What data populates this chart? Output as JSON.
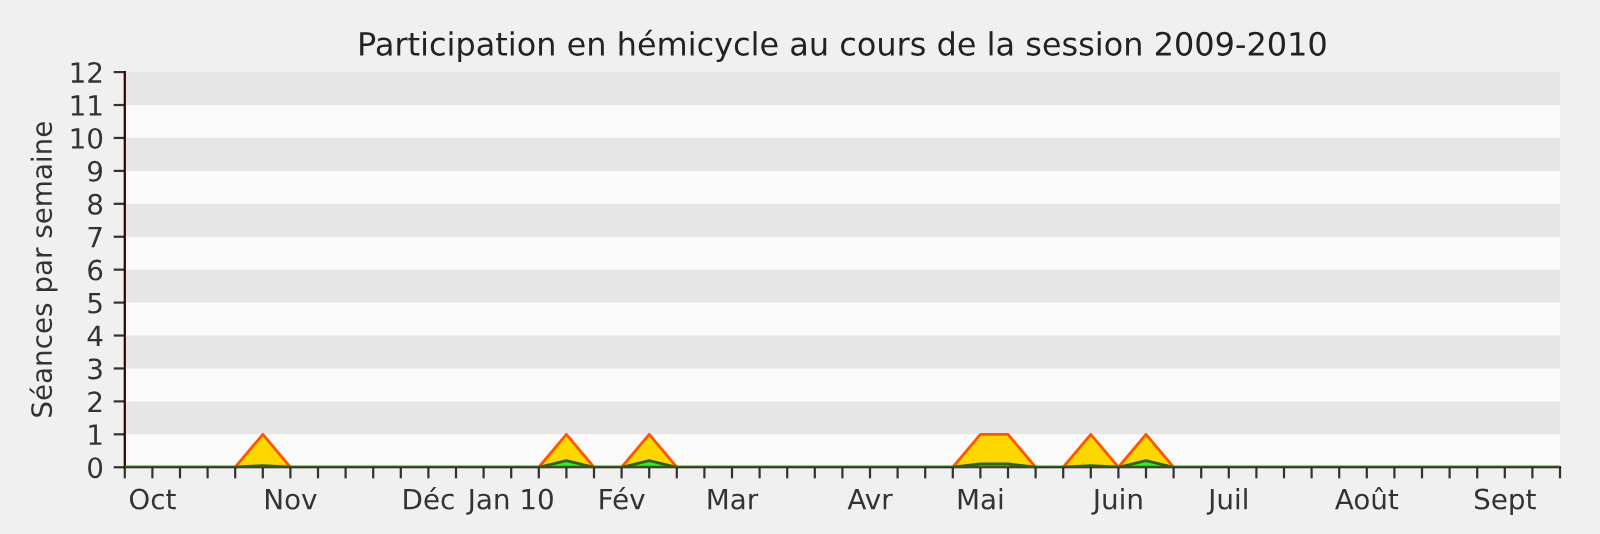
{
  "chart_data": {
    "type": "area",
    "title": "Participation en hémicycle au cours de la session 2009-2010",
    "ylabel": "Séances par semaine",
    "categories": [
      null,
      "Oct",
      null,
      null,
      null,
      null,
      "Nov",
      null,
      null,
      null,
      null,
      "Déc",
      null,
      null,
      "Jan 10",
      null,
      null,
      null,
      "Fév",
      null,
      null,
      null,
      "Mar",
      null,
      null,
      null,
      null,
      "Avr",
      null,
      null,
      null,
      "Mai",
      null,
      null,
      null,
      null,
      "Juin",
      null,
      null,
      null,
      "Juil",
      null,
      null,
      null,
      null,
      "Août",
      null,
      null,
      null,
      null,
      "Sept",
      null,
      null
    ],
    "series": [
      {
        "color": "#ffd700",
        "values": [
          0,
          0,
          0,
          0,
          0,
          1,
          0,
          0,
          0,
          0,
          0,
          0,
          0,
          0,
          0,
          0,
          1,
          0,
          0,
          1,
          0,
          0,
          0,
          0,
          0,
          0,
          0,
          0,
          0,
          0,
          0,
          1,
          1,
          0,
          0,
          1,
          0,
          1,
          0,
          0,
          0,
          0,
          0,
          0,
          0,
          0,
          0,
          0,
          0,
          0,
          0,
          0,
          0
        ]
      },
      {
        "color": "#33ee33",
        "values": [
          0,
          0,
          0,
          0,
          0,
          0.05,
          0,
          0,
          0,
          0,
          0,
          0,
          0,
          0,
          0,
          0,
          0.2,
          0,
          0,
          0.2,
          0,
          0,
          0,
          0,
          0,
          0,
          0,
          0,
          0,
          0,
          0,
          0.1,
          0.1,
          0,
          0,
          0.05,
          0,
          0.2,
          0,
          0,
          0,
          0,
          0,
          0,
          0,
          0,
          0,
          0,
          0,
          0,
          0,
          0,
          0
        ]
      }
    ],
    "ylim": [
      0,
      12
    ],
    "yticks": [
      0,
      1,
      2,
      3,
      4,
      5,
      6,
      7,
      8,
      9,
      10,
      11,
      12
    ],
    "bands": [
      {
        "axis": "y",
        "from": 1,
        "to": 2,
        "color": "#e6e6e6"
      },
      {
        "axis": "y",
        "from": 3,
        "to": 4,
        "color": "#e6e6e6"
      },
      {
        "axis": "y",
        "from": 5,
        "to": 6,
        "color": "#e6e6e6"
      },
      {
        "axis": "y",
        "from": 7,
        "to": 8,
        "color": "#e6e6e6"
      },
      {
        "axis": "y",
        "from": 9,
        "to": 10,
        "color": "#e6e6e6"
      },
      {
        "axis": "y",
        "from": 11,
        "to": 12,
        "color": "#e6e6e6"
      }
    ],
    "grid": false,
    "legend": false
  }
}
